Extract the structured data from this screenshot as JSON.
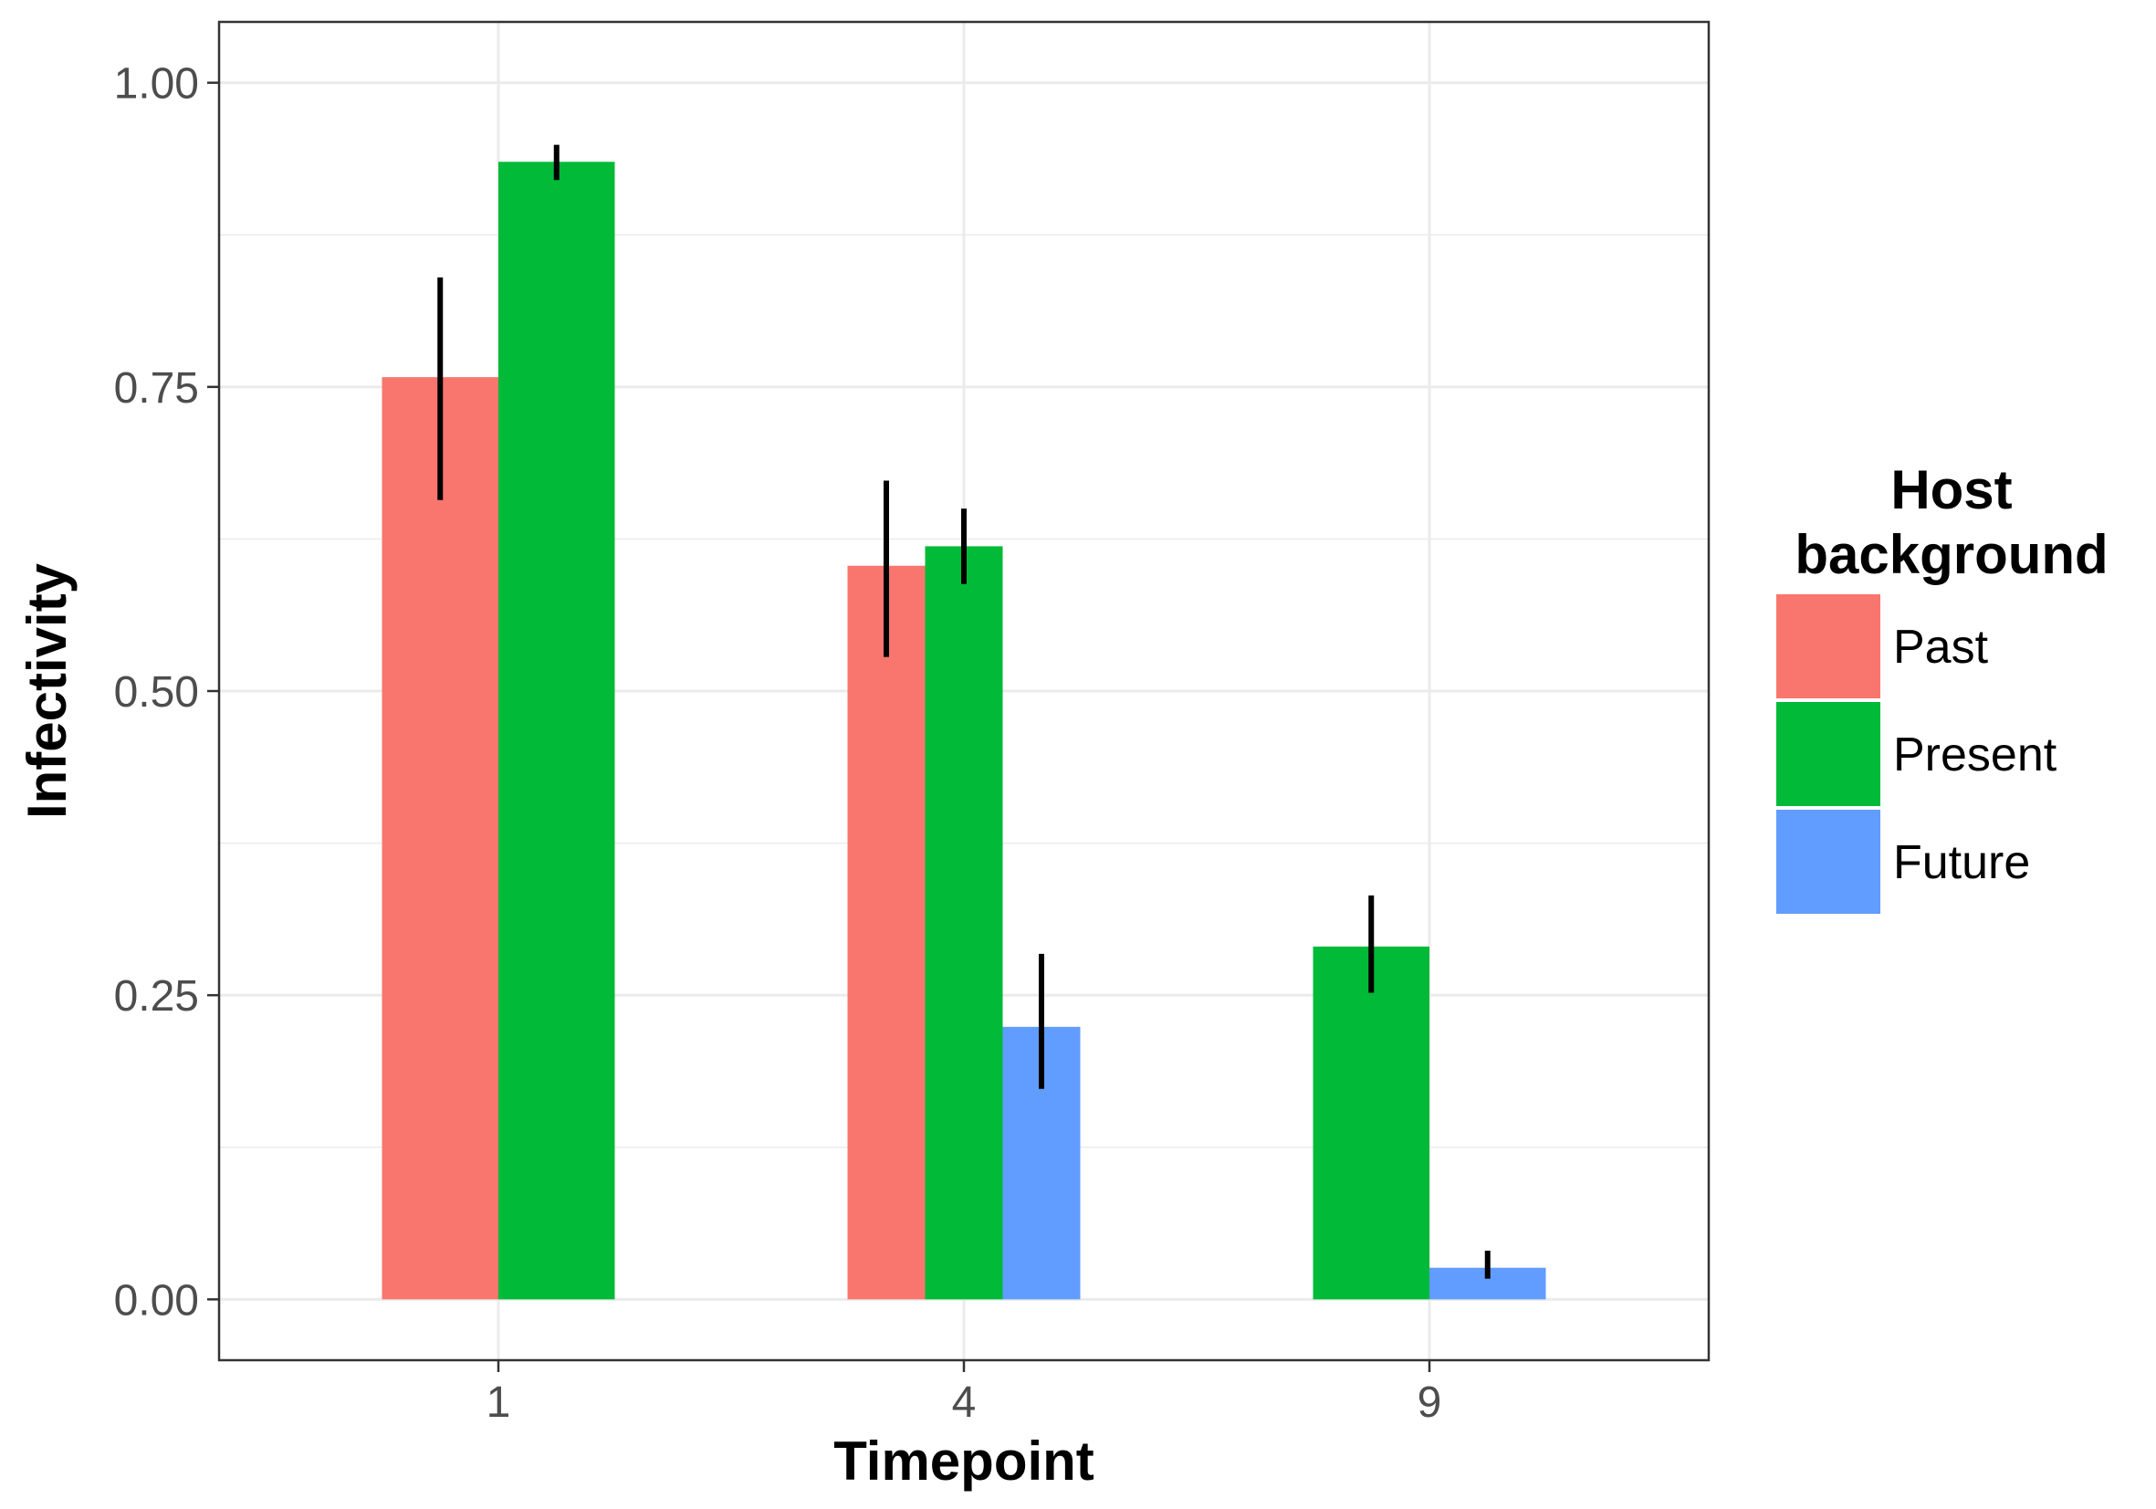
{
  "chart_data": {
    "type": "bar",
    "xlabel": "Timepoint",
    "ylabel": "Infectivity",
    "categories": [
      "1",
      "4",
      "9"
    ],
    "ylim": [
      -0.05,
      1.05
    ],
    "yticks": [
      "0.00",
      "0.25",
      "0.50",
      "0.75",
      "1.00"
    ],
    "ytick_values": [
      0,
      0.25,
      0.5,
      0.75,
      1.0
    ],
    "grid": true,
    "legend": {
      "title_line1": "Host",
      "title_line2": "background",
      "position": "right"
    },
    "series": [
      {
        "name": "Past",
        "color": "#F8766D",
        "values": [
          0.758,
          0.603,
          null
        ],
        "err_low": [
          0.657,
          0.528,
          null
        ],
        "err_high": [
          0.84,
          0.673,
          null
        ]
      },
      {
        "name": "Present",
        "color": "#00BA38",
        "values": [
          0.935,
          0.619,
          0.29
        ],
        "err_low": [
          0.92,
          0.588,
          0.252
        ],
        "err_high": [
          0.949,
          0.65,
          0.332
        ]
      },
      {
        "name": "Future",
        "color": "#619CFF",
        "values": [
          null,
          0.224,
          0.026
        ],
        "err_low": [
          null,
          0.173,
          0.017
        ],
        "err_high": [
          null,
          0.284,
          0.04
        ]
      }
    ]
  }
}
